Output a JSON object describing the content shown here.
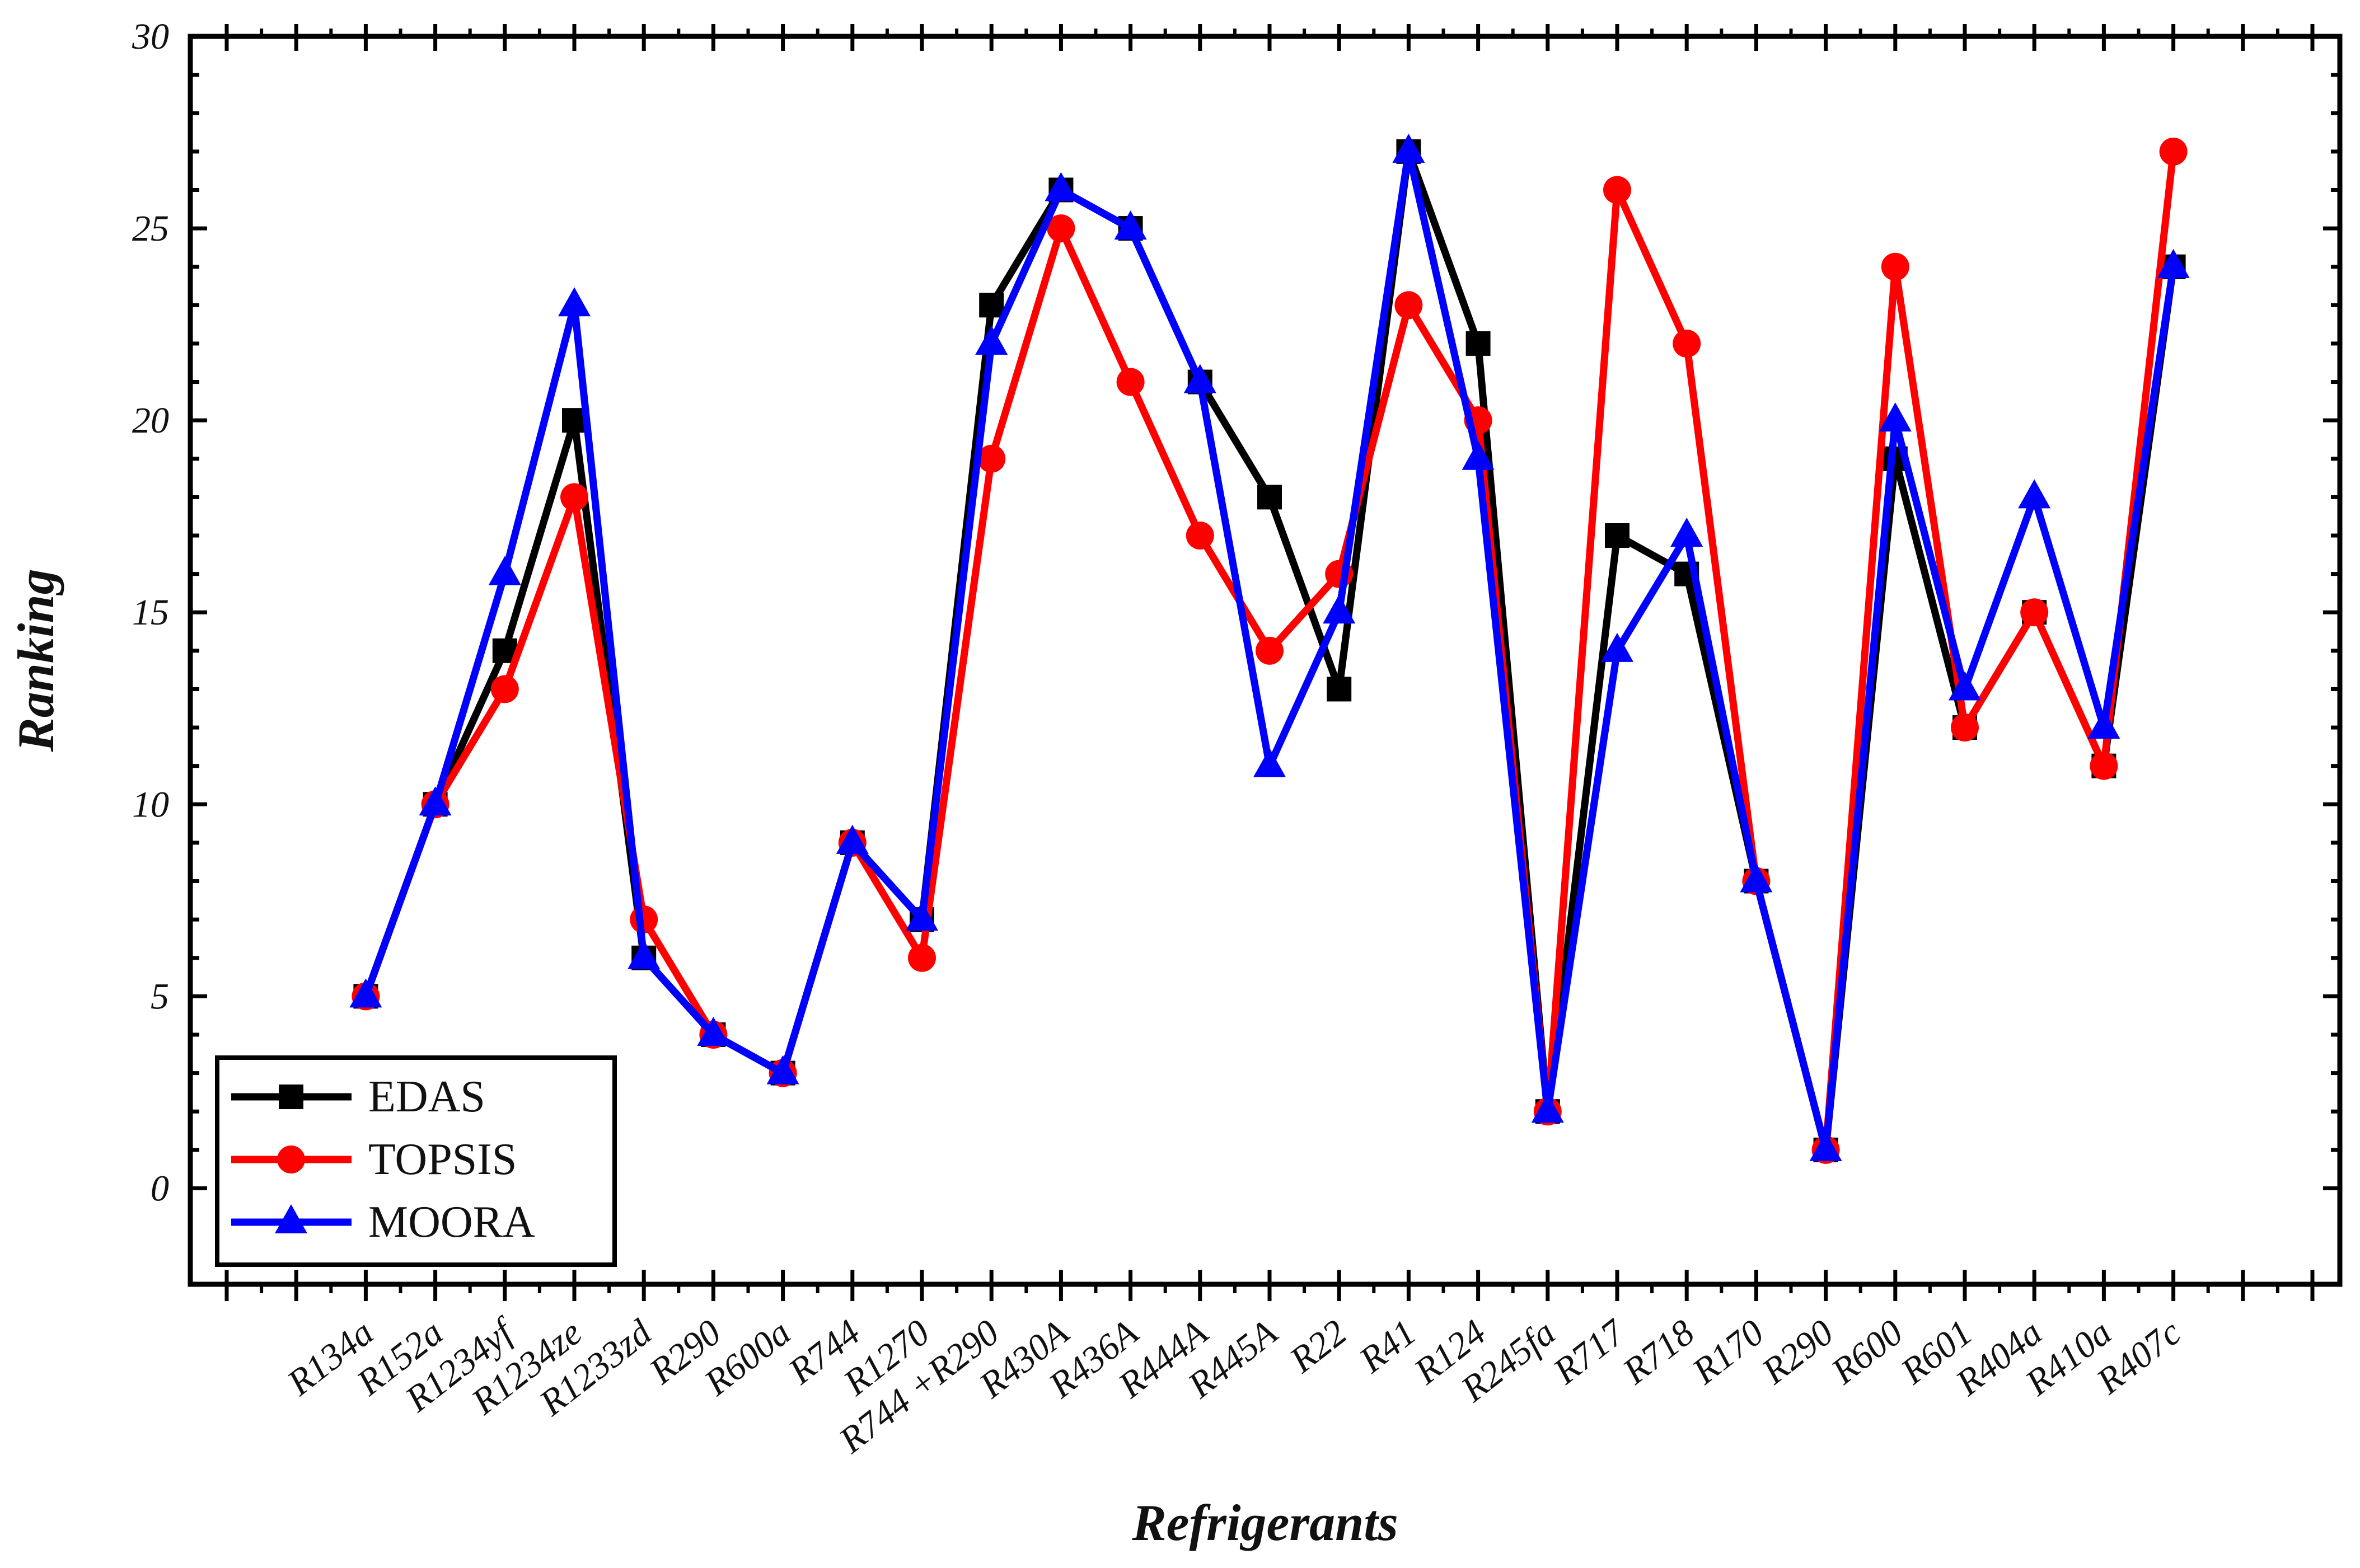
{
  "chart_data": {
    "type": "line",
    "title": "",
    "xlabel": "Refrigerants",
    "ylabel": "Ranking",
    "ylim": [
      -2.5,
      30
    ],
    "yticks": [
      0,
      5,
      10,
      15,
      20,
      25,
      30
    ],
    "grid": false,
    "legend_position": "bottom-left",
    "categories": [
      "R134a",
      "R152a",
      "R1234yf",
      "R1234ze",
      "R1233zd",
      "R290",
      "R600a",
      "R744",
      "R1270",
      "R744 +R290",
      "R430A",
      "R436A",
      "R444A",
      "R445A",
      "R22",
      "R41",
      "R124",
      "R245fa",
      "R717",
      "R718",
      "R170",
      "R290",
      "R600",
      "R601",
      "R404a",
      "R410a",
      "R407c"
    ],
    "series": [
      {
        "name": "EDAS",
        "color": "#000000",
        "marker": "square",
        "values": [
          5,
          10,
          14,
          20,
          6,
          4,
          3,
          9,
          7,
          23,
          26,
          25,
          21,
          18,
          13,
          27,
          22,
          2,
          17,
          16,
          8,
          1,
          19,
          12,
          15,
          11,
          24
        ]
      },
      {
        "name": "TOPSIS",
        "color": "#ff0000",
        "marker": "circle",
        "values": [
          5,
          10,
          13,
          18,
          7,
          4,
          3,
          9,
          6,
          19,
          25,
          21,
          17,
          14,
          16,
          23,
          20,
          2,
          26,
          22,
          8,
          1,
          24,
          12,
          15,
          11,
          27
        ]
      },
      {
        "name": "MOORA",
        "color": "#0000ff",
        "marker": "triangle",
        "values": [
          5,
          10,
          16,
          23,
          6,
          4,
          3,
          9,
          7,
          22,
          26,
          25,
          21,
          11,
          15,
          27,
          19,
          2,
          14,
          17,
          8,
          1,
          20,
          13,
          18,
          12,
          24
        ]
      }
    ]
  }
}
